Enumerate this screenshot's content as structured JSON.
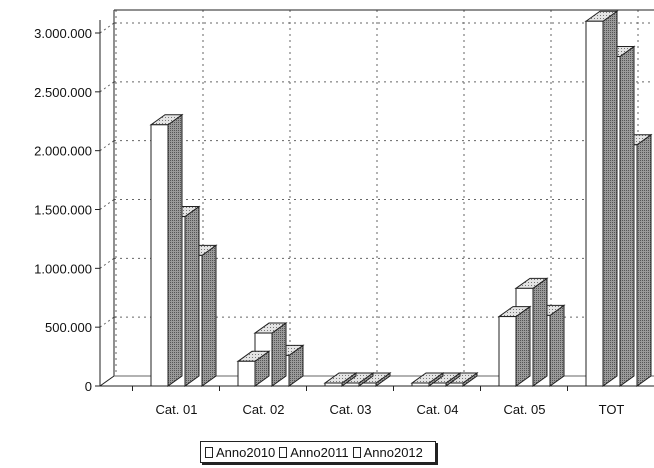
{
  "chart_data": {
    "type": "bar",
    "categories": [
      "Cat. 01",
      "Cat. 02",
      "Cat. 03",
      "Cat. 04",
      "Cat. 05",
      "TOT"
    ],
    "series": [
      {
        "name": "Anno2010",
        "values": [
          2220000,
          210000,
          10000,
          5000,
          590000,
          3100000
        ]
      },
      {
        "name": "Anno2011",
        "values": [
          1440000,
          450000,
          25000,
          5000,
          830000,
          2800000
        ]
      },
      {
        "name": "Anno2012",
        "values": [
          1110000,
          260000,
          15000,
          5000,
          600000,
          2050000
        ]
      }
    ],
    "y_ticks": [
      "0",
      "500.000",
      "1.000.000",
      "1.500.000",
      "2.000.000",
      "2.500.000",
      "3.000.000"
    ],
    "ylim": [
      0,
      3000000
    ],
    "grid": true,
    "legend_position": "bottom-center",
    "title": "",
    "xlabel": "",
    "ylabel": "",
    "colors": {
      "bar_front": "#ffffff",
      "bar_top": "#d0d0d0",
      "bar_side": "#8c8c8c",
      "outline": "#222222"
    }
  }
}
